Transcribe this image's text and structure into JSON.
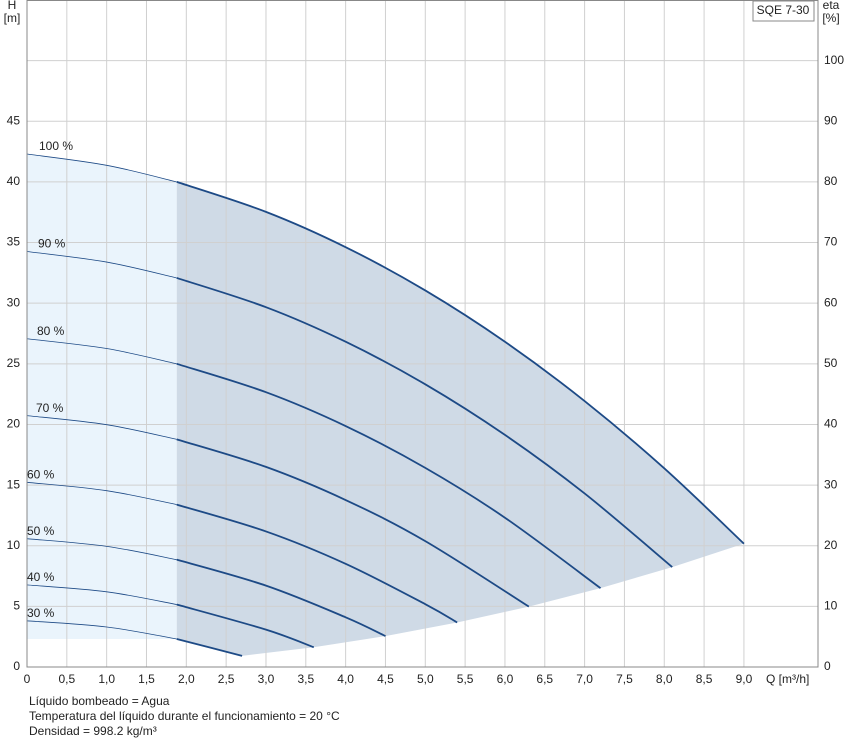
{
  "chart_data": {
    "type": "line",
    "legend_title": "SQE 7-30",
    "y_label": "H",
    "y_unit": "[m]",
    "y2_label": "eta",
    "y2_unit": "[%]",
    "x_label": "Q [m³/h]",
    "notes": [
      "Líquido bombeado = Agua",
      "Temperatura del líquido durante el funcionamiento = 20 °C",
      "Densidad = 998.2 kg/m³"
    ],
    "xlim": [
      0,
      9.93
    ],
    "ylim": [
      0,
      55
    ],
    "y2lim": [
      0,
      110
    ],
    "xticks": [
      0,
      {
        "value": 0.5,
        "label": "0,5"
      },
      {
        "value": 1,
        "label": "1,0"
      },
      {
        "value": 1.5,
        "label": "1,5"
      },
      {
        "value": 2,
        "label": "2,0"
      },
      {
        "value": 2.5,
        "label": "2,5"
      },
      {
        "value": 3,
        "label": "3,0"
      },
      {
        "value": 3.5,
        "label": "3,5"
      },
      {
        "value": 4,
        "label": "4,0"
      },
      {
        "value": 4.5,
        "label": "4,5"
      },
      {
        "value": 5,
        "label": "5,0"
      },
      {
        "value": 5.5,
        "label": "5,5"
      },
      {
        "value": 6,
        "label": "6,0"
      },
      {
        "value": 6.5,
        "label": "6,5"
      },
      {
        "value": 7,
        "label": "7,0"
      },
      {
        "value": 7.5,
        "label": "7,5"
      },
      {
        "value": 8,
        "label": "8,0"
      },
      {
        "value": 8.5,
        "label": "8,5"
      },
      {
        "value": 9,
        "label": "9,0"
      }
    ],
    "yticks": [
      0,
      5,
      10,
      15,
      20,
      25,
      30,
      35,
      40,
      45
    ],
    "y2ticks": [
      0,
      10,
      20,
      30,
      40,
      50,
      60,
      70,
      80,
      90,
      100
    ],
    "grid": true,
    "color": "#1d4a86",
    "series": [
      {
        "name": "100 %",
        "x": [
          0,
          1,
          1.88,
          3,
          4,
          5,
          6,
          7,
          8,
          9
        ],
        "values": [
          42.3,
          41.37,
          40.0,
          37.53,
          34.62,
          31.05,
          26.82,
          21.93,
          16.38,
          10.17
        ]
      },
      {
        "name": "90 %",
        "x": [
          0,
          1,
          1.88,
          3,
          4,
          5,
          6,
          7,
          8.1
        ],
        "values": [
          34.26,
          33.39,
          32.08,
          29.67,
          26.82,
          23.31,
          19.14,
          14.31,
          8.24
        ]
      },
      {
        "name": "80 %",
        "x": [
          0,
          1,
          1.88,
          3,
          4,
          5,
          6,
          7.2
        ],
        "values": [
          27.07,
          26.26,
          25.0,
          22.66,
          19.87,
          16.42,
          12.31,
          6.5
        ]
      },
      {
        "name": "70 %",
        "x": [
          0,
          1,
          1.88,
          3,
          4,
          5,
          6.3
        ],
        "values": [
          20.73,
          19.98,
          18.77,
          16.5,
          13.77,
          10.38,
          4.98
        ]
      },
      {
        "name": "60 %",
        "x": [
          0,
          1,
          1.88,
          3,
          4,
          5,
          5.4
        ],
        "values": [
          15.23,
          14.54,
          13.39,
          11.18,
          8.51,
          5.18,
          3.67
        ]
      },
      {
        "name": "50 %",
        "x": [
          0,
          1,
          1.88,
          3,
          4,
          4.5
        ],
        "values": [
          10.58,
          9.95,
          8.85,
          6.71,
          4.1,
          2.55
        ]
      },
      {
        "name": "40 %",
        "x": [
          0,
          1,
          1.88,
          3,
          3.6
        ],
        "values": [
          6.77,
          6.2,
          5.15,
          3.08,
          1.63
        ]
      },
      {
        "name": "30 %",
        "x": [
          0,
          1,
          1.88,
          2.7
        ],
        "values": [
          3.81,
          3.3,
          2.31,
          0.92
        ]
      }
    ]
  }
}
